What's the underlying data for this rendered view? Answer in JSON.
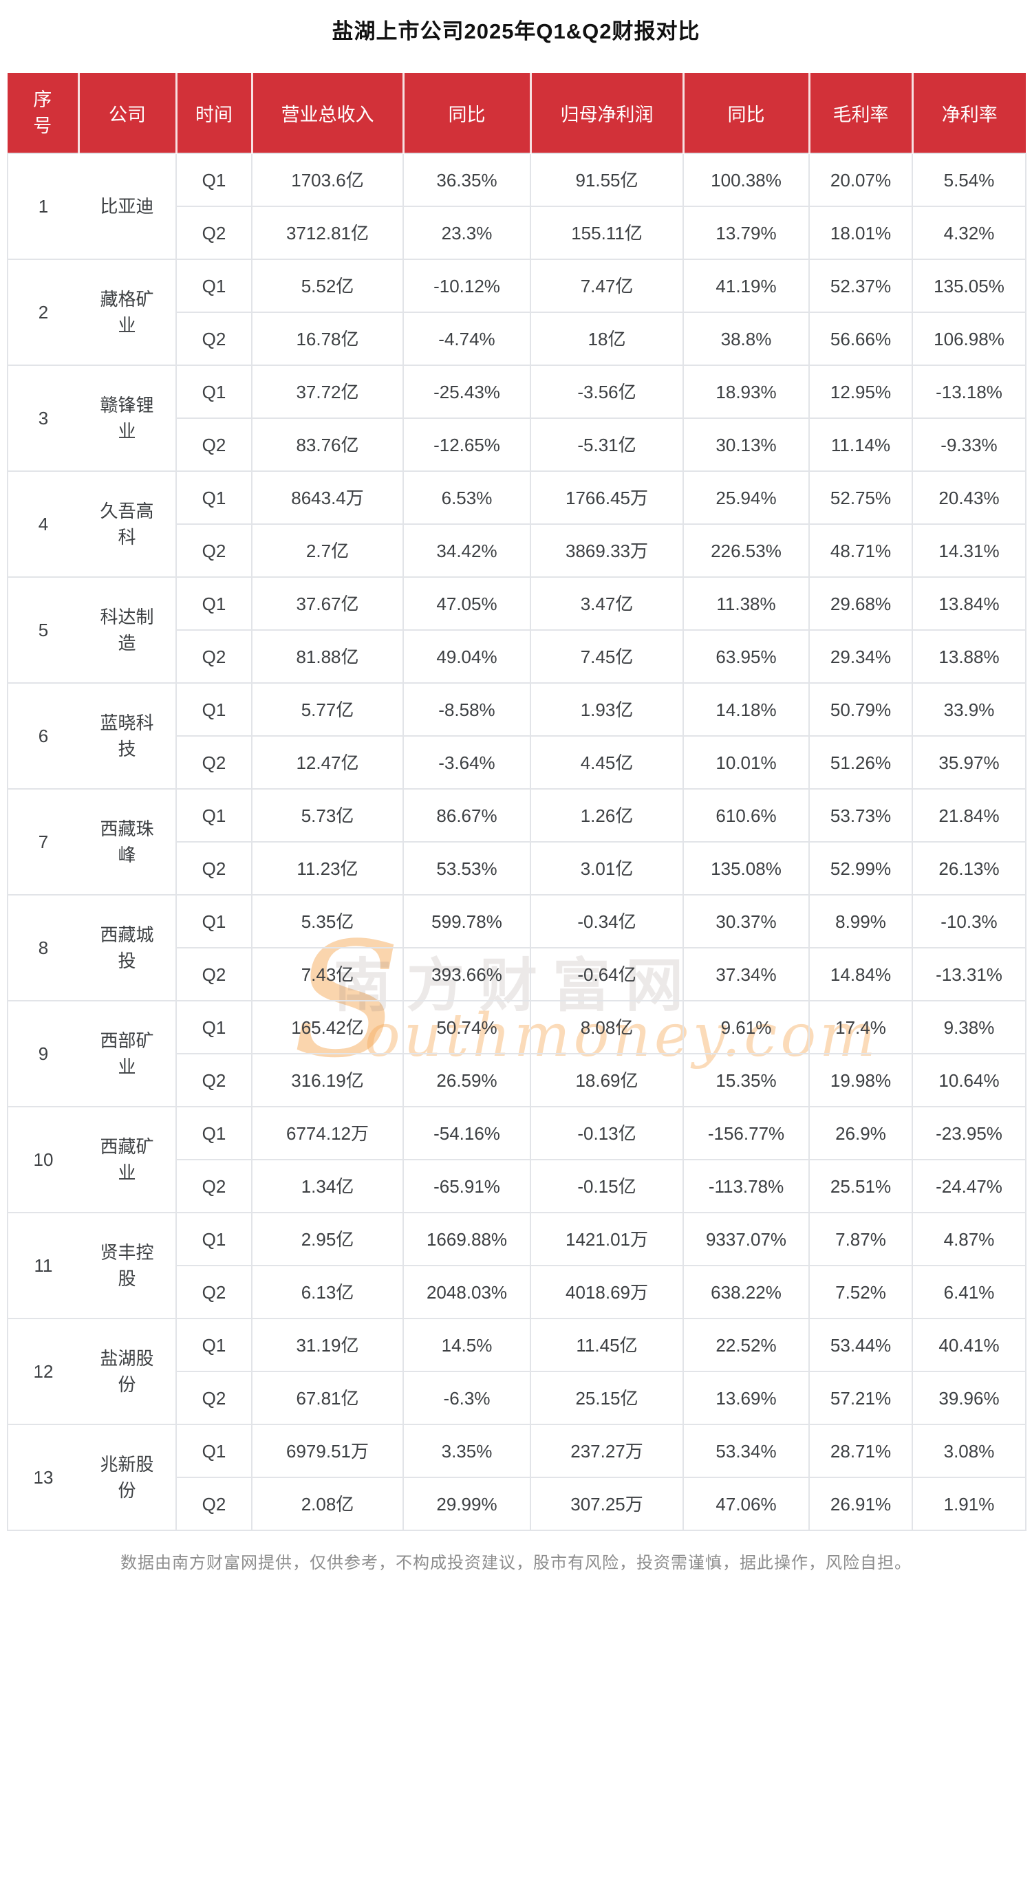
{
  "page": {
    "title": "盐湖上市公司2025年Q1&Q2财报对比",
    "footer": "数据由南方财富网提供，仅供参考，不构成投资建议，股市有风险，投资需谨慎，据此操作，风险自担。"
  },
  "colors": {
    "header_bg": "#d23139",
    "header_text": "#ffffff",
    "body_text": "#3d4043",
    "grid_border": "#e2e4e8",
    "footer_text": "#8d8d8d",
    "watermark_orange": "#f5ac5c",
    "watermark_gray": "#877870"
  },
  "watermark": {
    "initial": "S",
    "brand": "南方财富网",
    "domain": "outhmoney.com"
  },
  "table": {
    "columns": [
      "序号",
      "公司",
      "时间",
      "营业总收入",
      "同比",
      "归母净利润",
      "同比",
      "毛利率",
      "净利率"
    ],
    "rows": [
      {
        "no": "1",
        "company": "比亚迪",
        "periods": [
          {
            "label": "Q1",
            "values": [
              "1703.6亿",
              "36.35%",
              "91.55亿",
              "100.38%",
              "20.07%",
              "5.54%"
            ]
          },
          {
            "label": "Q2",
            "values": [
              "3712.81亿",
              "23.3%",
              "155.11亿",
              "13.79%",
              "18.01%",
              "4.32%"
            ]
          }
        ]
      },
      {
        "no": "2",
        "company": "藏格矿业",
        "periods": [
          {
            "label": "Q1",
            "values": [
              "5.52亿",
              "-10.12%",
              "7.47亿",
              "41.19%",
              "52.37%",
              "135.05%"
            ]
          },
          {
            "label": "Q2",
            "values": [
              "16.78亿",
              "-4.74%",
              "18亿",
              "38.8%",
              "56.66%",
              "106.98%"
            ]
          }
        ]
      },
      {
        "no": "3",
        "company": "赣锋锂业",
        "periods": [
          {
            "label": "Q1",
            "values": [
              "37.72亿",
              "-25.43%",
              "-3.56亿",
              "18.93%",
              "12.95%",
              "-13.18%"
            ]
          },
          {
            "label": "Q2",
            "values": [
              "83.76亿",
              "-12.65%",
              "-5.31亿",
              "30.13%",
              "11.14%",
              "-9.33%"
            ]
          }
        ]
      },
      {
        "no": "4",
        "company": "久吾高科",
        "periods": [
          {
            "label": "Q1",
            "values": [
              "8643.4万",
              "6.53%",
              "1766.45万",
              "25.94%",
              "52.75%",
              "20.43%"
            ]
          },
          {
            "label": "Q2",
            "values": [
              "2.7亿",
              "34.42%",
              "3869.33万",
              "226.53%",
              "48.71%",
              "14.31%"
            ]
          }
        ]
      },
      {
        "no": "5",
        "company": "科达制造",
        "periods": [
          {
            "label": "Q1",
            "values": [
              "37.67亿",
              "47.05%",
              "3.47亿",
              "11.38%",
              "29.68%",
              "13.84%"
            ]
          },
          {
            "label": "Q2",
            "values": [
              "81.88亿",
              "49.04%",
              "7.45亿",
              "63.95%",
              "29.34%",
              "13.88%"
            ]
          }
        ]
      },
      {
        "no": "6",
        "company": "蓝晓科技",
        "periods": [
          {
            "label": "Q1",
            "values": [
              "5.77亿",
              "-8.58%",
              "1.93亿",
              "14.18%",
              "50.79%",
              "33.9%"
            ]
          },
          {
            "label": "Q2",
            "values": [
              "12.47亿",
              "-3.64%",
              "4.45亿",
              "10.01%",
              "51.26%",
              "35.97%"
            ]
          }
        ]
      },
      {
        "no": "7",
        "company": "西藏珠峰",
        "periods": [
          {
            "label": "Q1",
            "values": [
              "5.73亿",
              "86.67%",
              "1.26亿",
              "610.6%",
              "53.73%",
              "21.84%"
            ]
          },
          {
            "label": "Q2",
            "values": [
              "11.23亿",
              "53.53%",
              "3.01亿",
              "135.08%",
              "52.99%",
              "26.13%"
            ]
          }
        ]
      },
      {
        "no": "8",
        "company": "西藏城投",
        "periods": [
          {
            "label": "Q1",
            "values": [
              "5.35亿",
              "599.78%",
              "-0.34亿",
              "30.37%",
              "8.99%",
              "-10.3%"
            ]
          },
          {
            "label": "Q2",
            "values": [
              "7.43亿",
              "393.66%",
              "-0.64亿",
              "37.34%",
              "14.84%",
              "-13.31%"
            ]
          }
        ]
      },
      {
        "no": "9",
        "company": "西部矿业",
        "periods": [
          {
            "label": "Q1",
            "values": [
              "165.42亿",
              "50.74%",
              "8.08亿",
              "9.61%",
              "17.4%",
              "9.38%"
            ]
          },
          {
            "label": "Q2",
            "values": [
              "316.19亿",
              "26.59%",
              "18.69亿",
              "15.35%",
              "19.98%",
              "10.64%"
            ]
          }
        ]
      },
      {
        "no": "10",
        "company": "西藏矿业",
        "periods": [
          {
            "label": "Q1",
            "values": [
              "6774.12万",
              "-54.16%",
              "-0.13亿",
              "-156.77%",
              "26.9%",
              "-23.95%"
            ]
          },
          {
            "label": "Q2",
            "values": [
              "1.34亿",
              "-65.91%",
              "-0.15亿",
              "-113.78%",
              "25.51%",
              "-24.47%"
            ]
          }
        ]
      },
      {
        "no": "11",
        "company": "贤丰控股",
        "periods": [
          {
            "label": "Q1",
            "values": [
              "2.95亿",
              "1669.88%",
              "1421.01万",
              "9337.07%",
              "7.87%",
              "4.87%"
            ]
          },
          {
            "label": "Q2",
            "values": [
              "6.13亿",
              "2048.03%",
              "4018.69万",
              "638.22%",
              "7.52%",
              "6.41%"
            ]
          }
        ]
      },
      {
        "no": "12",
        "company": "盐湖股份",
        "periods": [
          {
            "label": "Q1",
            "values": [
              "31.19亿",
              "14.5%",
              "11.45亿",
              "22.52%",
              "53.44%",
              "40.41%"
            ]
          },
          {
            "label": "Q2",
            "values": [
              "67.81亿",
              "-6.3%",
              "25.15亿",
              "13.69%",
              "57.21%",
              "39.96%"
            ]
          }
        ]
      },
      {
        "no": "13",
        "company": "兆新股份",
        "periods": [
          {
            "label": "Q1",
            "values": [
              "6979.51万",
              "3.35%",
              "237.27万",
              "53.34%",
              "28.71%",
              "3.08%"
            ]
          },
          {
            "label": "Q2",
            "values": [
              "2.08亿",
              "29.99%",
              "307.25万",
              "47.06%",
              "26.91%",
              "1.91%"
            ]
          }
        ]
      }
    ]
  }
}
